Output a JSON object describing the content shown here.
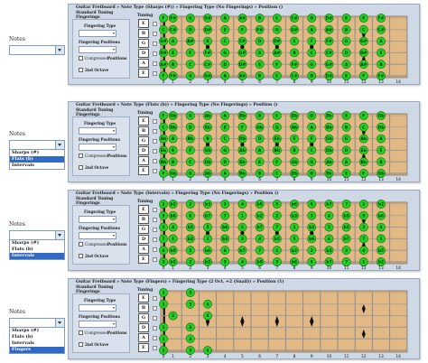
{
  "panels": [
    {
      "id": "sharps",
      "title": "Guitar Fretboard  »  Note Type (Sharps (#))  »  Fingering Type (No Fingerings)  »  Position  ()",
      "tuning_header": "Standard Tuning",
      "fingerings_header": "Fingerings",
      "tuning_label": "Tuning",
      "fingering_type_label": "Fingering Type",
      "fingering_positions_label": "Fingering Positions",
      "compressed_label": "Compressed",
      "positions_label": "Positions",
      "octave_label": "2nd Octave",
      "open_strings": [
        "E",
        "B",
        "G",
        "D",
        "A",
        "E"
      ],
      "fret_numbers": [
        "0",
        "1",
        "2",
        "3",
        "4",
        "5",
        "6",
        "7",
        "8",
        "9",
        "10",
        "11",
        "12",
        "13",
        "14"
      ],
      "notes": [
        [
          "F",
          "F#",
          "G",
          "G#",
          "A",
          "A#",
          "B",
          "C",
          "C#",
          "D",
          "D#",
          "E",
          "F",
          "F#"
        ],
        [
          "C",
          "C#",
          "D",
          "D#",
          "E",
          "F",
          "F#",
          "G",
          "G#",
          "A",
          "A#",
          "B",
          "C",
          "C#"
        ],
        [
          "G#",
          "A",
          "A#",
          "B",
          "C",
          "C#",
          "D",
          "D#",
          "E",
          "F",
          "F#",
          "G",
          "G#",
          "A"
        ],
        [
          "D#",
          "E",
          "F",
          "F#",
          "G",
          "G#",
          "A",
          "A#",
          "B",
          "C",
          "C#",
          "D",
          "D#",
          "E"
        ],
        [
          "A#",
          "B",
          "C",
          "C#",
          "D",
          "D#",
          "E",
          "F",
          "F#",
          "G",
          "G#",
          "A",
          "A#",
          "B"
        ],
        [
          "F",
          "F#",
          "G",
          "G#",
          "A",
          "A#",
          "B",
          "C",
          "C#",
          "D",
          "D#",
          "E",
          "F",
          "F#"
        ]
      ],
      "dropdown": {
        "label": "Notes",
        "options": [],
        "selected": ""
      }
    },
    {
      "id": "flats",
      "title": "Guitar Fretboard  »  Note Type (Flats (b))  »  Fingering Type (No Fingerings)  »  Position  ()",
      "tuning_header": "Standard Tuning",
      "fingerings_header": "Fingerings",
      "tuning_label": "Tuning",
      "fingering_type_label": "Fingering Type",
      "fingering_positions_label": "Fingering Positions",
      "compressed_label": "Compressed",
      "positions_label": "Positions",
      "octave_label": "2nd Octave",
      "open_strings": [
        "E",
        "B",
        "G",
        "D",
        "A",
        "E"
      ],
      "fret_numbers": [
        "0",
        "1",
        "2",
        "3",
        "4",
        "5",
        "6",
        "7",
        "8",
        "9",
        "10",
        "11",
        "12",
        "13",
        "14"
      ],
      "notes": [
        [
          "F",
          "Gb",
          "G",
          "Ab",
          "A",
          "Bb",
          "B",
          "C",
          "Db",
          "D",
          "Eb",
          "E",
          "F",
          "Gb"
        ],
        [
          "C",
          "Db",
          "D",
          "Eb",
          "E",
          "F",
          "Gb",
          "G",
          "Ab",
          "A",
          "Bb",
          "B",
          "C",
          "Db"
        ],
        [
          "Ab",
          "A",
          "Bb",
          "B",
          "C",
          "Db",
          "D",
          "Eb",
          "E",
          "F",
          "Gb",
          "G",
          "Ab",
          "A"
        ],
        [
          "Eb",
          "E",
          "F",
          "Gb",
          "G",
          "Ab",
          "A",
          "Bb",
          "B",
          "C",
          "Db",
          "D",
          "Eb",
          "E"
        ],
        [
          "Bb",
          "B",
          "C",
          "Db",
          "D",
          "Eb",
          "E",
          "F",
          "Gb",
          "G",
          "Ab",
          "A",
          "Bb",
          "B"
        ],
        [
          "F",
          "Gb",
          "G",
          "Ab",
          "A",
          "Bb",
          "B",
          "C",
          "Db",
          "D",
          "Eb",
          "E",
          "F",
          "Gb"
        ]
      ],
      "dropdown": {
        "label": "Notes",
        "options": [
          "Sharps (#)",
          "Flats (b)",
          "Intervals"
        ],
        "selected": "Flats (b)"
      }
    },
    {
      "id": "intervals",
      "title": "Guitar Fretboard  »  Note Type (Intervals)  »  Fingering Type (No Fingerings)  »  Position  ()",
      "tuning_header": "Standard Tuning",
      "fingerings_header": "Fingerings",
      "tuning_label": "Tuning",
      "fingering_type_label": "Fingering Type",
      "fingering_positions_label": "Fingering Positions",
      "compressed_label": "Compressed",
      "positions_label": "Positions",
      "octave_label": "2nd Octave",
      "open_strings": [
        "E",
        "B",
        "G",
        "D",
        "A",
        "E"
      ],
      "fret_numbers": [
        "0",
        "1",
        "2",
        "3",
        "4",
        "5",
        "6",
        "7",
        "8",
        "9",
        "10",
        "11",
        "12",
        "13",
        "14"
      ],
      "notes": [
        [
          "1",
          "b2",
          "2",
          "b3",
          "3",
          "4",
          "b5",
          "5",
          "b6",
          "6",
          "b7",
          "7",
          "1",
          "b2"
        ],
        [
          "5",
          "b6",
          "6",
          "b7",
          "7",
          "1",
          "b2",
          "2",
          "b3",
          "3",
          "4",
          "b5",
          "5",
          "b6"
        ],
        [
          "3",
          "4",
          "b5",
          "5",
          "b6",
          "6",
          "b7",
          "7",
          "1",
          "b2",
          "2",
          "b3",
          "3",
          "4"
        ],
        [
          "7",
          "1",
          "b2",
          "2",
          "b3",
          "3",
          "4",
          "b5",
          "5",
          "b6",
          "6",
          "b7",
          "7",
          "1"
        ],
        [
          "4",
          "b5",
          "5",
          "b6",
          "6",
          "b7",
          "7",
          "1",
          "b2",
          "2",
          "b3",
          "3",
          "4",
          "b5"
        ],
        [
          "1",
          "b2",
          "2",
          "b3",
          "3",
          "4",
          "b5",
          "5",
          "b6",
          "6",
          "b7",
          "7",
          "1",
          "b2"
        ]
      ],
      "dropdown": {
        "label": "Notes",
        "options": [
          "Sharps (#)",
          "Flats (b)",
          "Intervals"
        ],
        "selected": "Intervals"
      }
    },
    {
      "id": "fingers",
      "title": "Guitar Fretboard  »  Note Type (Fingers)  »  Fingering Type (2 Oct. +2 (Snail))  »  Position  (1)",
      "tuning_header": "Standard Tuning",
      "fingerings_header": "Fingerings",
      "tuning_label": "Tuning",
      "fingering_type_label": "Fingering Type",
      "fingering_positions_label": "Fingering Positions",
      "compressed_label": "Compressed",
      "positions_label": "Positions",
      "octave_label": "2nd Octave",
      "open_strings": [
        "E",
        "B",
        "G",
        "D",
        "A",
        "E"
      ],
      "fret_numbers": [
        "0",
        "1",
        "2",
        "3",
        "4",
        "5",
        "6",
        "7",
        "8",
        "9",
        "10",
        "11",
        "12",
        "13",
        "14"
      ],
      "notes": [
        [
          "1",
          "",
          "3",
          "",
          "",
          "",
          "",
          "",
          "",
          "",
          "",
          "",
          "",
          ""
        ],
        [
          "1",
          "",
          "3",
          "4",
          "",
          "",
          "",
          "",
          "",
          "",
          "",
          "",
          "",
          ""
        ],
        [
          "",
          "2",
          "",
          "4",
          "",
          "",
          "",
          "",
          "",
          "",
          "",
          "",
          "",
          ""
        ],
        [
          "1",
          "",
          "3",
          "",
          "",
          "",
          "",
          "",
          "",
          "",
          "",
          "",
          "",
          ""
        ],
        [
          "1",
          "",
          "3",
          "",
          "",
          "",
          "",
          "",
          "",
          "",
          "",
          "",
          "",
          ""
        ],
        [
          "1",
          "",
          "3",
          "4",
          "",
          "",
          "",
          "",
          "",
          "",
          "",
          "",
          "",
          ""
        ]
      ],
      "dropdown": {
        "label": "Notes",
        "options": [
          "Sharps (#)",
          "Flats (b)",
          "Intervals",
          "Fingers"
        ],
        "selected": "Fingers"
      }
    }
  ]
}
